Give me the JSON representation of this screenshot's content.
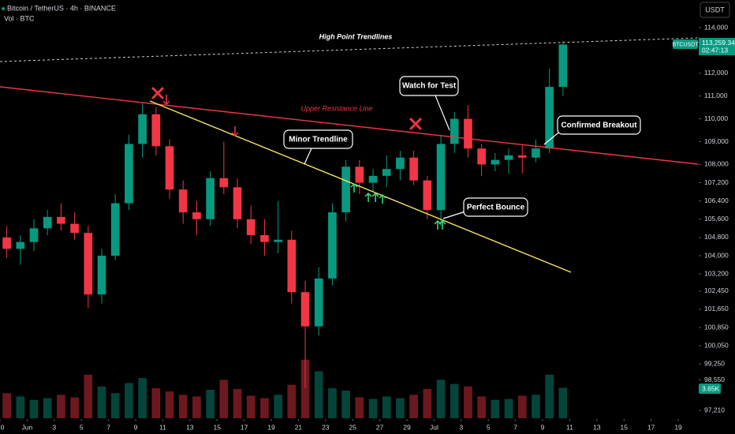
{
  "chart_data": {
    "type": "candlestick",
    "title": "Bitcoin / TetherUS · 4h · BINANCE",
    "subtitle": "Vol · BTC",
    "currency": "USDT",
    "symbol": "BTCUSDT",
    "last_label": "113,259.34",
    "countdown": "02:47:13",
    "volume_label": "3.65K",
    "up_color": "#089981",
    "down_color": "#f23645",
    "x": [
      0.5,
      1.5,
      2.5,
      3.5,
      4.5,
      5.5,
      6.5,
      7.5,
      8.5,
      9.5,
      10.5,
      11.5,
      12.5,
      13.5,
      14.5,
      15.5,
      16.5,
      17.5,
      18.5,
      19.5,
      20.5,
      21.5,
      22.5,
      23.5,
      24.5,
      25.5,
      26.5,
      27.5,
      28.5,
      29.5,
      30.5,
      31.5,
      32.5,
      33.5,
      34.5,
      35.5,
      36.5,
      37.5,
      38.5,
      39.5,
      40.5,
      41.5
    ],
    "open": [
      104800,
      104300,
      104600,
      105200,
      105700,
      105400,
      105000,
      102300,
      104000,
      106300,
      108900,
      110200,
      108800,
      106900,
      105900,
      105600,
      107400,
      107000,
      105600,
      104900,
      104600,
      104700,
      102400,
      100900,
      103000,
      105900,
      107900,
      107200,
      107500,
      107800,
      108300,
      107300,
      106000,
      108900,
      110000,
      108700,
      108000,
      108200,
      108400,
      108300,
      108700,
      111400
    ],
    "high": [
      105300,
      104900,
      105600,
      106000,
      106300,
      105900,
      105300,
      104300,
      106700,
      109300,
      110700,
      110500,
      109100,
      107300,
      106400,
      107700,
      109000,
      107400,
      106200,
      105600,
      106400,
      105100,
      102900,
      103500,
      106300,
      108200,
      108200,
      107800,
      108400,
      108600,
      108600,
      107500,
      109300,
      110300,
      110600,
      108900,
      108500,
      108700,
      108900,
      109100,
      112200,
      113400
    ],
    "low": [
      103900,
      103600,
      104200,
      104900,
      105100,
      104700,
      101700,
      101900,
      103800,
      106000,
      108300,
      108400,
      106500,
      105400,
      104900,
      105300,
      106700,
      105200,
      104500,
      104000,
      104100,
      101900,
      98200,
      100500,
      102700,
      105500,
      106700,
      106800,
      107000,
      107300,
      107100,
      105600,
      105300,
      108500,
      108300,
      107500,
      107700,
      107600,
      107600,
      108100,
      108500,
      111000
    ],
    "close": [
      104300,
      104600,
      105200,
      105700,
      105400,
      105000,
      102300,
      104000,
      106300,
      108900,
      110200,
      108800,
      106900,
      105900,
      105600,
      107400,
      107000,
      105600,
      104900,
      104600,
      104700,
      102400,
      100900,
      103000,
      105900,
      107900,
      107200,
      107500,
      107800,
      108300,
      107300,
      106000,
      108900,
      110000,
      108700,
      108000,
      108200,
      108400,
      108300,
      108700,
      111400,
      113259.34
    ],
    "volume": [
      3000,
      2600,
      2200,
      2400,
      2800,
      2500,
      5200,
      3800,
      3000,
      4200,
      4800,
      3600,
      3200,
      2800,
      2600,
      3400,
      4600,
      3500,
      2700,
      2400,
      2800,
      4000,
      7000,
      5600,
      3600,
      3300,
      2500,
      2300,
      2600,
      2400,
      2800,
      3500,
      4600,
      4100,
      3800,
      2600,
      2200,
      2300,
      2700,
      2800,
      5200,
      3650
    ],
    "volume_ylim": [
      0,
      50000
    ],
    "xlim": [
      0,
      51.45
    ],
    "xticks": [
      0,
      {
        "value": 2,
        "label": "Jun"
      },
      {
        "value": 4,
        "label": "3"
      },
      {
        "value": 6,
        "label": "5"
      },
      {
        "value": 8,
        "label": "7"
      },
      {
        "value": 10,
        "label": "9"
      },
      {
        "value": 12,
        "label": "11"
      },
      {
        "value": 14,
        "label": "13"
      },
      {
        "value": 16,
        "label": "15"
      },
      {
        "value": 18,
        "label": "17"
      },
      {
        "value": 20,
        "label": "19"
      },
      {
        "value": 22,
        "label": "21"
      },
      {
        "value": 24,
        "label": "23"
      },
      {
        "value": 26,
        "label": "25"
      },
      {
        "value": 28,
        "label": "27"
      },
      {
        "value": 30,
        "label": "29"
      },
      {
        "value": 32,
        "label": "Jul"
      },
      {
        "value": 34,
        "label": "3"
      },
      {
        "value": 36,
        "label": "5"
      },
      {
        "value": 38,
        "label": "7"
      },
      {
        "value": 40,
        "label": "9"
      },
      {
        "value": 42,
        "label": "11"
      },
      {
        "value": 44,
        "label": "13"
      },
      {
        "value": 46,
        "label": "15"
      },
      {
        "value": 48,
        "label": "17"
      },
      {
        "value": 50,
        "label": "19"
      }
    ],
    "ylim": [
      96873,
      115211
    ],
    "yticks": [
      {
        "value": 114000,
        "label": "114,000"
      },
      {
        "value": 112000,
        "label": "112,000"
      },
      {
        "value": 111000,
        "label": "111,000"
      },
      {
        "value": 110000,
        "label": "110,000"
      },
      {
        "value": 109000,
        "label": "109,000"
      },
      {
        "value": 108000,
        "label": "108,000"
      },
      {
        "value": 107200,
        "label": "107,200"
      },
      {
        "value": 106400,
        "label": "106,400"
      },
      {
        "value": 105600,
        "label": "105,600"
      },
      {
        "value": 104800,
        "label": "104,800"
      },
      {
        "value": 104000,
        "label": "104,000"
      },
      {
        "value": 103200,
        "label": "103,200"
      },
      {
        "value": 102450,
        "label": "102,450"
      },
      {
        "value": 101650,
        "label": "101,650"
      },
      {
        "value": 100850,
        "label": "100,850"
      },
      {
        "value": 100050,
        "label": "100,050"
      },
      {
        "value": 99250,
        "label": "99,250"
      },
      {
        "value": 98550,
        "label": "98,550"
      },
      {
        "value": 97210,
        "label": "97,210"
      }
    ],
    "annotations": {
      "high_point": "High Point Trendlines",
      "resistance": "Upper Resistance Line",
      "minor": "Minor Trendline",
      "watch": "Watch for Test",
      "breakout": "Confirmed Breakout",
      "bounce": "Perfect Bounce"
    }
  }
}
